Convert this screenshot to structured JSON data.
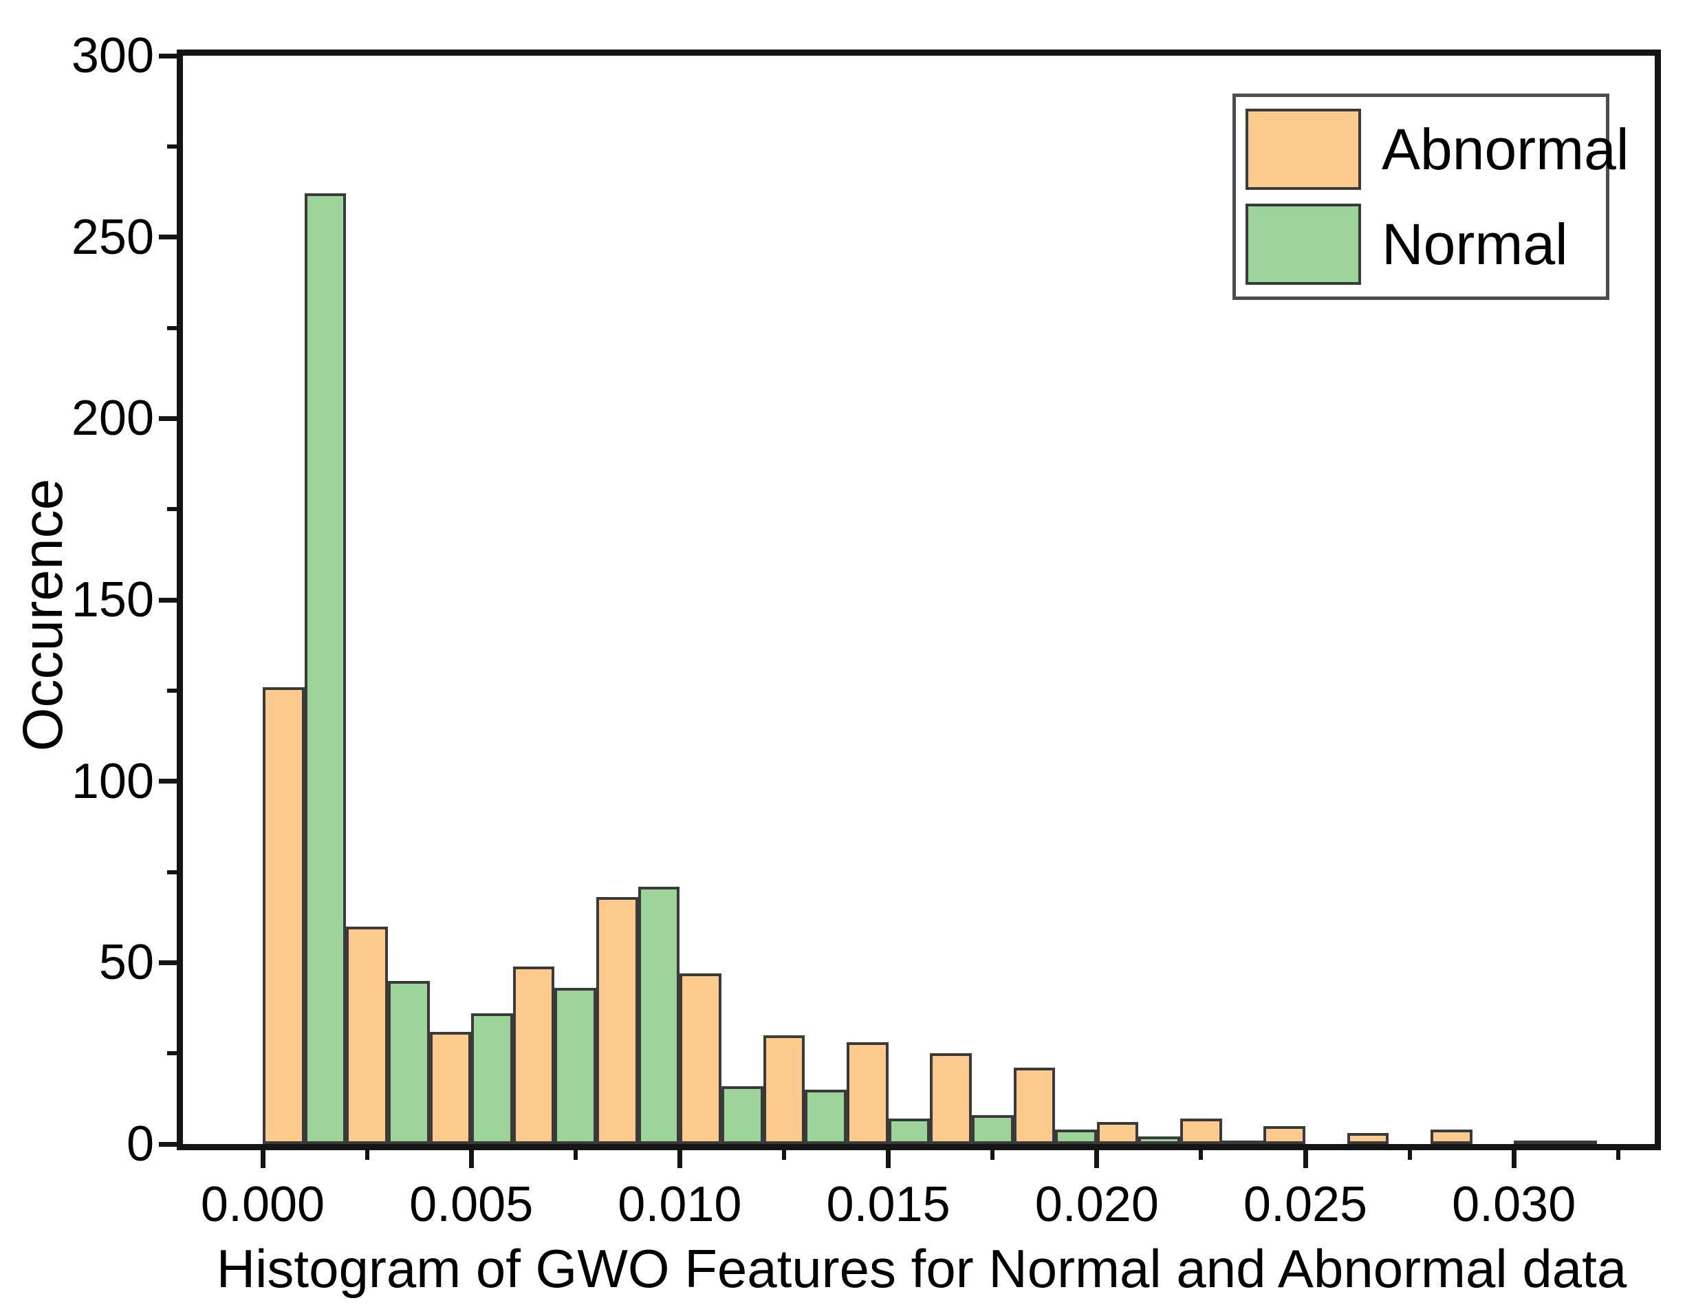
{
  "figure": {
    "background": "#ffffff"
  },
  "colors": {
    "abnormal_fill": "#FBCA8C",
    "normal_fill": "#9CD49A",
    "bar_outline": "#3A3A3A",
    "axis": "#141414",
    "legend_border": "#4D4D4D"
  },
  "legend": {
    "position": "top-right",
    "items": [
      {
        "label": "Abnormal",
        "color": "#FBCA8C"
      },
      {
        "label": "Normal",
        "color": "#9CD49A"
      }
    ]
  },
  "chart_data": {
    "type": "bar",
    "subtype": "histogram-dodged-pairs",
    "title": "Histogram of GWO Features for Normal and Abnormal data",
    "title_position": "below-x-axis",
    "xlabel": "",
    "ylabel": "Occurence",
    "bin_start": 0.0,
    "bin_pitch": 0.002,
    "bar_width_units": 0.001,
    "bin_starts": [
      0.0,
      0.002,
      0.004,
      0.006,
      0.008,
      0.01,
      0.012,
      0.014,
      0.016,
      0.018,
      0.02,
      0.022,
      0.024,
      0.026,
      0.028,
      0.03
    ],
    "series": [
      {
        "name": "Abnormal",
        "color": "#FBCA8C",
        "values": [
          126,
          60,
          31,
          49,
          68,
          47,
          30,
          28,
          25,
          21,
          6,
          7,
          5,
          3,
          4,
          1
        ]
      },
      {
        "name": "Normal",
        "color": "#9CD49A",
        "values": [
          262,
          45,
          36,
          43,
          71,
          16,
          15,
          7,
          8,
          4,
          2,
          1,
          0,
          0,
          0,
          1
        ]
      }
    ],
    "x_ticks": [
      "0.000",
      "0.005",
      "0.010",
      "0.015",
      "0.020",
      "0.025",
      "0.030"
    ],
    "x_minor_tick_step": 0.0025,
    "y_ticks": [
      "0",
      "50",
      "100",
      "150",
      "200",
      "250",
      "300"
    ],
    "y_minor_tick_step": 25,
    "ylim": [
      0,
      300
    ],
    "xlim": [
      -0.0021,
      0.0335
    ],
    "grid": "off",
    "legend_position": "inside-top-right"
  }
}
